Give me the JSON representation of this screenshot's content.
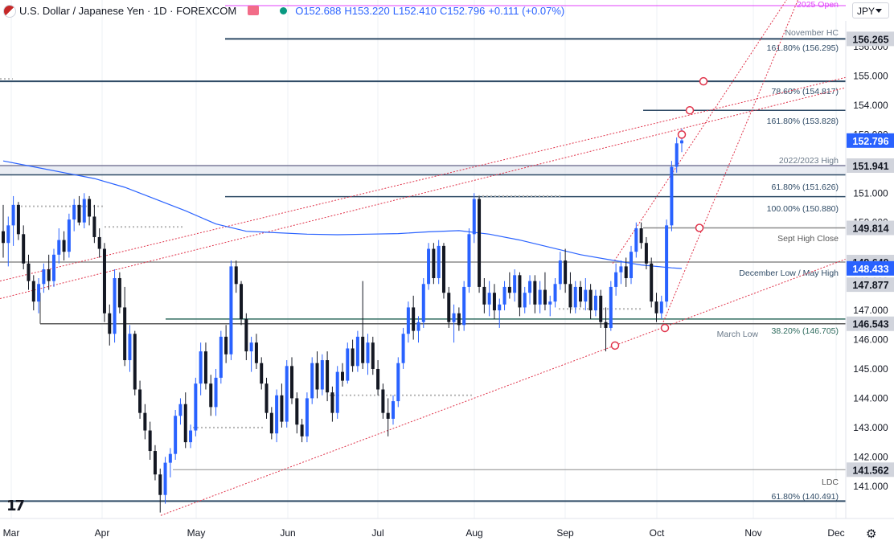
{
  "header": {
    "title": "U.S. Dollar / Japanese Yen · 1D · FOREXCOM",
    "open": "O152.688",
    "high": "H153.220",
    "low": "L152.410",
    "close": "C152.796",
    "change": "+0.111 (+0.07%)"
  },
  "currency_selector": "JPY",
  "colors": {
    "up": "#2962ff",
    "down": "#131722",
    "sma": "#2962ff",
    "level": "#2f4b66",
    "trend": "#e0334a",
    "magenta": "#e040fb"
  },
  "chart_data": {
    "type": "candlestick",
    "title": "U.S. Dollar / Japanese Yen · 1D · FOREXCOM",
    "ylim": [
      139.7,
      157.4
    ],
    "x_tick_labels": [
      "Mar",
      "Apr",
      "May",
      "Jun",
      "Jul",
      "Aug",
      "Sep",
      "Oct",
      "Nov",
      "Dec"
    ],
    "y_tick_labels": [
      "156.000",
      "155.000",
      "154.000",
      "153.000",
      "151.000",
      "150.000",
      "148.000",
      "147.000",
      "146.000",
      "145.000",
      "144.000",
      "143.000",
      "142.000",
      "141.000"
    ],
    "price_labels": [
      {
        "text": "156.265",
        "value": 156.265
      },
      {
        "text": "152.796",
        "value": 152.796
      },
      {
        "text": "151.941",
        "value": 151.941
      },
      {
        "text": "149.814",
        "value": 149.814
      },
      {
        "text": "148.649",
        "value": 148.649
      },
      {
        "text": "148.433",
        "value": 148.433
      },
      {
        "text": "147.877",
        "value": 147.877
      },
      {
        "text": "146.543",
        "value": 146.543
      },
      {
        "text": "141.562",
        "value": 141.562
      }
    ],
    "levels": [
      {
        "label": "2025 Open",
        "value": 157.4
      },
      {
        "label": "November HC",
        "value": 156.265
      },
      {
        "label": "161.80% (156.295)",
        "value": 156.295
      },
      {
        "label": "78.60% (154.817)",
        "value": 154.817
      },
      {
        "label": "161.80% (153.828)",
        "value": 153.828
      },
      {
        "label": "2022/2023 High",
        "value": 151.941
      },
      {
        "label": "61.80% (151.626)",
        "value": 151.626
      },
      {
        "label": "100.00% (150.880)",
        "value": 150.88
      },
      {
        "label": "Sept High Close",
        "value": 149.814
      },
      {
        "label": "December Low / May High",
        "value": 148.649
      },
      {
        "label": "March Low",
        "value": 146.543
      },
      {
        "label": "38.20% (146.705)",
        "value": 146.705
      },
      {
        "label": "LDC",
        "value": 141.562
      },
      {
        "label": "61.80% (140.491)",
        "value": 140.491
      }
    ],
    "candles": [
      [
        149.7,
        150.6,
        148.8,
        149.3
      ],
      [
        149.3,
        150.2,
        148.5,
        149.9
      ],
      [
        149.9,
        150.9,
        149.2,
        150.6
      ],
      [
        150.6,
        150.7,
        149.4,
        149.6
      ],
      [
        149.6,
        149.9,
        148.4,
        148.6
      ],
      [
        148.6,
        148.9,
        147.7,
        148.0
      ],
      [
        148.0,
        148.2,
        147.0,
        147.3
      ],
      [
        147.3,
        148.1,
        146.9,
        147.9
      ],
      [
        147.9,
        148.6,
        147.6,
        148.4
      ],
      [
        148.4,
        148.9,
        147.7,
        148.0
      ],
      [
        148.0,
        149.1,
        147.8,
        148.9
      ],
      [
        148.9,
        149.8,
        148.6,
        149.4
      ],
      [
        149.4,
        149.7,
        148.7,
        149.0
      ],
      [
        149.0,
        150.3,
        148.8,
        150.1
      ],
      [
        150.1,
        150.8,
        149.7,
        150.6
      ],
      [
        150.6,
        150.9,
        149.9,
        150.0
      ],
      [
        150.0,
        151.0,
        149.8,
        150.8
      ],
      [
        150.8,
        150.9,
        149.9,
        150.2
      ],
      [
        150.2,
        150.6,
        149.3,
        149.5
      ],
      [
        149.5,
        149.8,
        148.8,
        149.1
      ],
      [
        149.1,
        149.3,
        146.6,
        146.9
      ],
      [
        146.9,
        147.2,
        145.8,
        146.2
      ],
      [
        146.2,
        148.4,
        145.9,
        148.1
      ],
      [
        148.1,
        148.3,
        146.9,
        147.1
      ],
      [
        147.1,
        147.8,
        145.1,
        145.3
      ],
      [
        145.3,
        146.5,
        144.9,
        146.2
      ],
      [
        146.2,
        146.3,
        144.1,
        144.3
      ],
      [
        144.3,
        144.6,
        143.3,
        143.5
      ],
      [
        143.5,
        143.8,
        142.6,
        142.9
      ],
      [
        142.9,
        143.2,
        141.9,
        142.2
      ],
      [
        142.2,
        142.4,
        141.2,
        141.4
      ],
      [
        141.4,
        141.6,
        140.1,
        140.7
      ],
      [
        140.7,
        142.0,
        140.4,
        141.8
      ],
      [
        141.8,
        142.3,
        141.3,
        142.1
      ],
      [
        142.1,
        143.6,
        141.9,
        143.4
      ],
      [
        143.4,
        144.0,
        143.1,
        143.8
      ],
      [
        143.8,
        144.2,
        142.3,
        142.5
      ],
      [
        142.5,
        143.1,
        142.3,
        142.9
      ],
      [
        142.9,
        144.7,
        142.7,
        144.5
      ],
      [
        144.5,
        145.9,
        144.1,
        145.6
      ],
      [
        145.6,
        145.9,
        144.3,
        144.5
      ],
      [
        144.5,
        144.8,
        143.4,
        143.7
      ],
      [
        143.7,
        145.0,
        143.4,
        144.7
      ],
      [
        144.7,
        146.3,
        144.5,
        146.1
      ],
      [
        146.1,
        146.5,
        145.2,
        145.5
      ],
      [
        145.5,
        148.7,
        145.3,
        148.5
      ],
      [
        148.5,
        148.7,
        147.6,
        147.9
      ],
      [
        147.9,
        148.0,
        146.5,
        146.7
      ],
      [
        146.7,
        146.9,
        145.3,
        145.6
      ],
      [
        145.6,
        146.1,
        144.9,
        145.9
      ],
      [
        145.9,
        146.2,
        145.0,
        145.2
      ],
      [
        145.2,
        145.4,
        144.3,
        144.5
      ],
      [
        144.5,
        144.7,
        143.3,
        143.5
      ],
      [
        143.5,
        143.7,
        142.6,
        142.8
      ],
      [
        142.8,
        144.3,
        142.5,
        144.1
      ],
      [
        144.1,
        144.5,
        143.0,
        143.2
      ],
      [
        143.2,
        145.3,
        143.0,
        145.1
      ],
      [
        145.1,
        145.4,
        143.8,
        144.0
      ],
      [
        144.0,
        144.2,
        142.8,
        143.1
      ],
      [
        143.1,
        143.3,
        142.5,
        142.7
      ],
      [
        142.7,
        144.2,
        142.5,
        144.0
      ],
      [
        144.0,
        145.4,
        143.8,
        145.2
      ],
      [
        145.2,
        145.6,
        144.0,
        144.3
      ],
      [
        144.3,
        145.5,
        144.1,
        145.3
      ],
      [
        145.3,
        145.6,
        143.9,
        144.2
      ],
      [
        144.2,
        144.4,
        143.2,
        143.5
      ],
      [
        143.5,
        145.1,
        143.3,
        144.9
      ],
      [
        144.9,
        145.2,
        144.4,
        144.6
      ],
      [
        144.6,
        145.9,
        144.5,
        145.7
      ],
      [
        145.7,
        146.0,
        144.9,
        145.1
      ],
      [
        145.1,
        146.3,
        144.9,
        146.1
      ],
      [
        146.1,
        148.0,
        145.0,
        145.2
      ],
      [
        145.2,
        146.2,
        144.8,
        145.9
      ],
      [
        145.9,
        146.1,
        144.8,
        145.0
      ],
      [
        145.0,
        145.3,
        144.1,
        144.3
      ],
      [
        144.3,
        144.5,
        143.3,
        143.5
      ],
      [
        143.5,
        144.0,
        142.7,
        143.3
      ],
      [
        143.3,
        144.1,
        143.1,
        143.9
      ],
      [
        143.9,
        145.4,
        143.7,
        145.2
      ],
      [
        145.2,
        146.4,
        145.0,
        146.2
      ],
      [
        146.2,
        147.3,
        145.9,
        147.1
      ],
      [
        147.1,
        147.5,
        146.0,
        146.3
      ],
      [
        146.3,
        146.8,
        145.9,
        146.6
      ],
      [
        146.6,
        148.1,
        146.4,
        147.9
      ],
      [
        147.9,
        149.3,
        147.7,
        149.1
      ],
      [
        149.1,
        149.3,
        147.9,
        148.1
      ],
      [
        148.1,
        149.4,
        147.9,
        149.2
      ],
      [
        149.2,
        149.3,
        147.4,
        147.6
      ],
      [
        147.6,
        147.8,
        146.4,
        146.6
      ],
      [
        146.6,
        147.2,
        145.9,
        146.9
      ],
      [
        146.9,
        147.1,
        146.3,
        146.5
      ],
      [
        146.5,
        148.0,
        146.3,
        147.8
      ],
      [
        147.8,
        149.8,
        147.6,
        149.6
      ],
      [
        149.6,
        151.0,
        149.3,
        150.8
      ],
      [
        150.8,
        150.9,
        147.6,
        147.8
      ],
      [
        147.8,
        148.1,
        146.9,
        147.2
      ],
      [
        147.2,
        148.0,
        146.8,
        147.6
      ],
      [
        147.6,
        147.9,
        146.7,
        147.0
      ],
      [
        147.0,
        147.4,
        146.4,
        147.2
      ],
      [
        147.2,
        148.0,
        147.0,
        147.8
      ],
      [
        147.8,
        148.3,
        147.4,
        147.6
      ],
      [
        147.6,
        148.4,
        147.3,
        148.2
      ],
      [
        148.2,
        148.3,
        146.8,
        147.1
      ],
      [
        147.1,
        147.8,
        146.9,
        147.6
      ],
      [
        147.6,
        148.2,
        147.2,
        148.0
      ],
      [
        148.0,
        148.2,
        146.9,
        147.2
      ],
      [
        147.2,
        148.0,
        146.9,
        147.7
      ],
      [
        147.7,
        148.3,
        147.0,
        147.2
      ],
      [
        147.2,
        147.5,
        146.8,
        147.3
      ],
      [
        147.3,
        148.1,
        147.1,
        147.9
      ],
      [
        147.9,
        149.0,
        147.7,
        148.7
      ],
      [
        148.7,
        149.1,
        147.6,
        147.9
      ],
      [
        147.9,
        148.3,
        146.9,
        147.1
      ],
      [
        147.1,
        148.0,
        146.9,
        147.8
      ],
      [
        147.8,
        148.0,
        147.1,
        147.3
      ],
      [
        147.3,
        148.1,
        147.0,
        147.7
      ],
      [
        147.7,
        147.9,
        146.7,
        147.0
      ],
      [
        147.0,
        147.7,
        146.8,
        147.5
      ],
      [
        147.5,
        147.7,
        146.4,
        146.6
      ],
      [
        146.6,
        147.1,
        145.6,
        146.4
      ],
      [
        146.4,
        148.0,
        146.3,
        147.8
      ],
      [
        147.8,
        148.6,
        147.5,
        148.3
      ],
      [
        148.3,
        148.7,
        147.9,
        148.5
      ],
      [
        148.5,
        148.8,
        147.8,
        148.1
      ],
      [
        148.1,
        149.2,
        147.9,
        149.0
      ],
      [
        149.0,
        150.0,
        148.8,
        149.8
      ],
      [
        149.8,
        150.0,
        149.1,
        149.3
      ],
      [
        149.3,
        149.5,
        148.4,
        148.6
      ],
      [
        148.6,
        148.8,
        147.1,
        147.3
      ],
      [
        147.3,
        147.6,
        146.6,
        146.9
      ],
      [
        146.9,
        147.5,
        146.7,
        147.3
      ],
      [
        147.3,
        150.1,
        147.1,
        149.9
      ],
      [
        149.9,
        152.1,
        149.7,
        151.9
      ],
      [
        151.9,
        152.9,
        151.7,
        152.7
      ],
      [
        152.7,
        153.2,
        152.4,
        152.8
      ]
    ],
    "sma_points": [
      [
        0,
        152.1
      ],
      [
        6,
        151.9
      ],
      [
        12,
        151.7
      ],
      [
        18,
        151.5
      ],
      [
        24,
        151.2
      ],
      [
        30,
        150.8
      ],
      [
        36,
        150.4
      ],
      [
        42,
        149.95
      ],
      [
        48,
        149.7
      ],
      [
        54,
        149.65
      ],
      [
        60,
        149.6
      ],
      [
        66,
        149.58
      ],
      [
        72,
        149.6
      ],
      [
        78,
        149.62
      ],
      [
        84,
        149.68
      ],
      [
        90,
        149.72
      ],
      [
        96,
        149.6
      ],
      [
        102,
        149.4
      ],
      [
        108,
        149.15
      ],
      [
        114,
        148.9
      ],
      [
        120,
        148.72
      ],
      [
        126,
        148.55
      ],
      [
        132,
        148.45
      ],
      [
        134,
        148.43
      ]
    ],
    "sma_label": "148.433"
  }
}
